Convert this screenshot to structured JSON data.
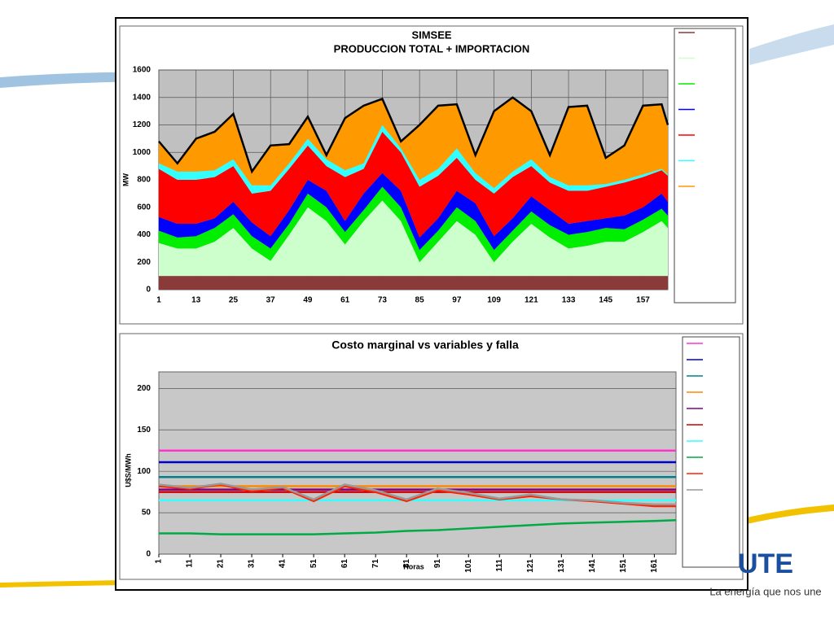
{
  "chart_data": [
    {
      "type": "area",
      "stacked": true,
      "title": "SIMSEE",
      "subtitle": "PRODUCCION TOTAL + IMPORTACION",
      "y_label": "MW",
      "x": [
        1,
        7,
        13,
        19,
        25,
        31,
        37,
        43,
        49,
        55,
        61,
        67,
        73,
        79,
        85,
        91,
        97,
        103,
        109,
        115,
        121,
        127,
        133,
        139,
        145,
        151,
        157,
        163,
        165
      ],
      "xlim": [
        1,
        165
      ],
      "xticks": [
        1,
        13,
        25,
        37,
        49,
        61,
        73,
        85,
        97,
        109,
        121,
        133,
        145,
        157
      ],
      "ylim": [
        0,
        1600
      ],
      "yticks": [
        0,
        200,
        400,
        600,
        800,
        1000,
        1200,
        1400,
        1600
      ],
      "grid": "both",
      "plot_color": "#c0c0c0",
      "outline_color": "#000000",
      "series": [
        {
          "color": "#8b3a3a",
          "values": [
            100,
            100,
            100,
            100,
            100,
            100,
            100,
            100,
            100,
            100,
            100,
            100,
            100,
            100,
            100,
            100,
            100,
            100,
            100,
            100,
            100,
            100,
            100,
            100,
            100,
            100,
            100,
            100,
            100
          ]
        },
        {
          "color": "#ccffcc",
          "values": [
            240,
            200,
            200,
            250,
            350,
            200,
            110,
            300,
            500,
            400,
            230,
            400,
            550,
            400,
            100,
            250,
            400,
            300,
            100,
            250,
            380,
            280,
            200,
            220,
            250,
            250,
            320,
            400,
            350
          ]
        },
        {
          "color": "#00ee00",
          "values": [
            90,
            80,
            90,
            100,
            100,
            90,
            90,
            80,
            100,
            100,
            90,
            80,
            100,
            100,
            90,
            80,
            100,
            100,
            90,
            80,
            90,
            90,
            100,
            100,
            100,
            90,
            90,
            90,
            90
          ]
        },
        {
          "color": "#0000ff",
          "values": [
            100,
            100,
            90,
            70,
            90,
            100,
            90,
            100,
            100,
            120,
            80,
            120,
            100,
            120,
            90,
            90,
            120,
            130,
            100,
            90,
            110,
            110,
            80,
            80,
            70,
            100,
            90,
            110,
            100
          ]
        },
        {
          "color": "#ff0000",
          "values": [
            350,
            320,
            320,
            300,
            260,
            210,
            330,
            300,
            250,
            180,
            320,
            180,
            300,
            280,
            370,
            310,
            240,
            170,
            310,
            300,
            220,
            200,
            240,
            220,
            230,
            240,
            220,
            170,
            190
          ]
        },
        {
          "color": "#33ffff",
          "values": [
            40,
            60,
            60,
            50,
            50,
            60,
            40,
            40,
            50,
            50,
            50,
            40,
            50,
            30,
            50,
            50,
            70,
            50,
            40,
            40,
            50,
            40,
            40,
            40,
            20,
            20,
            20,
            10,
            10
          ]
        },
        {
          "color": "#ff9900",
          "values": [
            160,
            60,
            240,
            280,
            330,
            100,
            290,
            140,
            160,
            30,
            380,
            420,
            190,
            50,
            400,
            460,
            320,
            130,
            560,
            540,
            350,
            160,
            570,
            580,
            190,
            250,
            500,
            470,
            360
          ]
        }
      ]
    },
    {
      "type": "line",
      "title": "Costo marginal vs variables y falla",
      "x_label": "Horas",
      "y_label": "U$S/MWh",
      "x": [
        1,
        11,
        21,
        31,
        41,
        51,
        61,
        71,
        81,
        91,
        101,
        111,
        121,
        131,
        141,
        151,
        161,
        168
      ],
      "xlim": [
        1,
        168
      ],
      "xticks": [
        1,
        11,
        21,
        31,
        41,
        51,
        61,
        71,
        81,
        91,
        101,
        111,
        121,
        131,
        141,
        151,
        161
      ],
      "ylim": [
        0,
        220
      ],
      "yticks": [
        0,
        50,
        100,
        150,
        200
      ],
      "grid": "y",
      "plot_color": "#c8c8c8",
      "series": [
        {
          "color": "#ff33cc",
          "values": [
            125,
            125,
            125,
            125,
            125,
            125,
            125,
            125,
            125,
            125,
            125,
            125,
            125,
            125,
            125,
            125,
            125,
            125
          ]
        },
        {
          "color": "#0000cc",
          "values": [
            111,
            111,
            111,
            111,
            111,
            111,
            111,
            111,
            111,
            111,
            111,
            111,
            111,
            111,
            111,
            111,
            111,
            111
          ]
        },
        {
          "color": "#00808a",
          "values": [
            93,
            93,
            93,
            93,
            93,
            93,
            93,
            93,
            93,
            93,
            93,
            93,
            93,
            93,
            93,
            93,
            93,
            93
          ]
        },
        {
          "color": "#ff8800",
          "values": [
            82,
            82,
            82,
            82,
            82,
            82,
            82,
            82,
            82,
            82,
            82,
            82,
            82,
            82,
            82,
            82,
            82,
            82
          ]
        },
        {
          "color": "#800080",
          "values": [
            78,
            78,
            78,
            78,
            78,
            78,
            78,
            78,
            78,
            78,
            78,
            78,
            78,
            78,
            78,
            78,
            78,
            78
          ]
        },
        {
          "color": "#cc0000",
          "values": [
            75,
            75,
            75,
            75,
            75,
            75,
            75,
            75,
            75,
            75,
            75,
            75,
            75,
            75,
            75,
            75,
            75,
            75
          ]
        },
        {
          "color": "#33ffff",
          "values": [
            65,
            65,
            65,
            65,
            65,
            65,
            65,
            65,
            65,
            65,
            65,
            65,
            65,
            65,
            65,
            65,
            65,
            65
          ]
        },
        {
          "color": "#00aa44",
          "values": [
            25,
            25,
            24,
            24,
            24,
            24,
            25,
            26,
            28,
            29,
            31,
            33,
            35,
            37,
            38,
            39,
            40,
            41
          ]
        },
        {
          "color": "#ff2200",
          "values": [
            82,
            79,
            84,
            76,
            80,
            64,
            82,
            75,
            64,
            77,
            72,
            66,
            70,
            66,
            64,
            61,
            58,
            58
          ]
        },
        {
          "color": "#999999",
          "values": [
            84,
            80,
            85,
            78,
            81,
            66,
            84,
            77,
            66,
            79,
            74,
            67,
            72,
            66,
            65,
            62,
            60,
            60
          ]
        }
      ]
    }
  ],
  "logo": {
    "name": "UTE",
    "slogan": "La energía que nos une"
  }
}
